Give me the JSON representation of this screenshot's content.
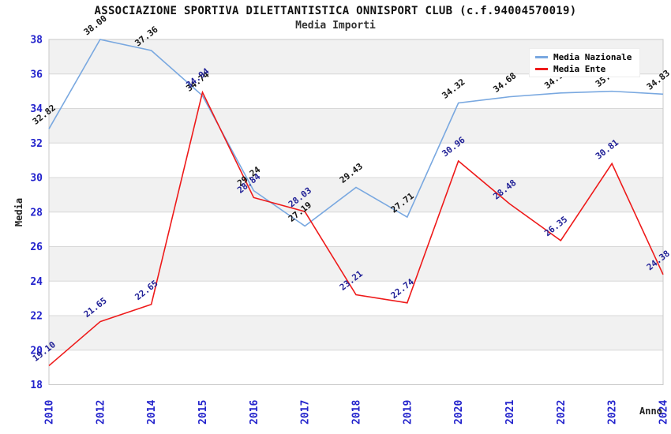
{
  "header": {
    "title": "ASSOCIAZIONE SPORTIVA DILETTANTISTICA ONNISPORT CLUB (c.f.94004570019)",
    "subtitle": "Media Importi"
  },
  "legend": {
    "items": [
      {
        "label": "Media Nazionale",
        "color": "#79a8e0"
      },
      {
        "label": "Media Ente",
        "color": "#ee1a1a"
      }
    ]
  },
  "colors": {
    "tick_label": "#2323cc",
    "band_gray": "#f1f1f1",
    "gridline": "#d8d8d8",
    "plot_border": "#c9c9c9",
    "nazionale_line": "#79a8e0",
    "nazionale_label": "#141414",
    "ente_line": "#ee1a1a",
    "ente_label": "#1f1f96"
  },
  "chart_data": {
    "type": "line",
    "title": "ASSOCIAZIONE SPORTIVA DILETTANTISTICA ONNISPORT CLUB (c.f.94004570019)",
    "subtitle": "Media Importi",
    "xlabel": "Anno",
    "ylabel": "Media",
    "categories": [
      "2010",
      "2012",
      "2014",
      "2015",
      "2016",
      "2017",
      "2018",
      "2019",
      "2020",
      "2021",
      "2022",
      "2023",
      "2024"
    ],
    "series": [
      {
        "name": "Media Nazionale",
        "color": "#79a8e0",
        "label_color": "#141414",
        "values": [
          32.82,
          38.0,
          37.36,
          34.74,
          29.24,
          27.19,
          29.43,
          27.71,
          34.32,
          34.68,
          34.9,
          35.0,
          34.83
        ]
      },
      {
        "name": "Media Ente",
        "color": "#ee1a1a",
        "label_color": "#1f1f96",
        "values": [
          19.1,
          21.65,
          22.65,
          34.94,
          28.84,
          28.03,
          23.21,
          22.74,
          30.96,
          28.48,
          26.35,
          30.81,
          24.38
        ]
      }
    ],
    "ylim": [
      18,
      38
    ],
    "y_tick_step": 2,
    "y_tick_labels": [
      "38",
      "36",
      "34",
      "32",
      "30",
      "28",
      "26",
      "24",
      "22",
      "20",
      "18"
    ],
    "grid": "horizontal alternating bands",
    "legend_position": "top-right"
  }
}
